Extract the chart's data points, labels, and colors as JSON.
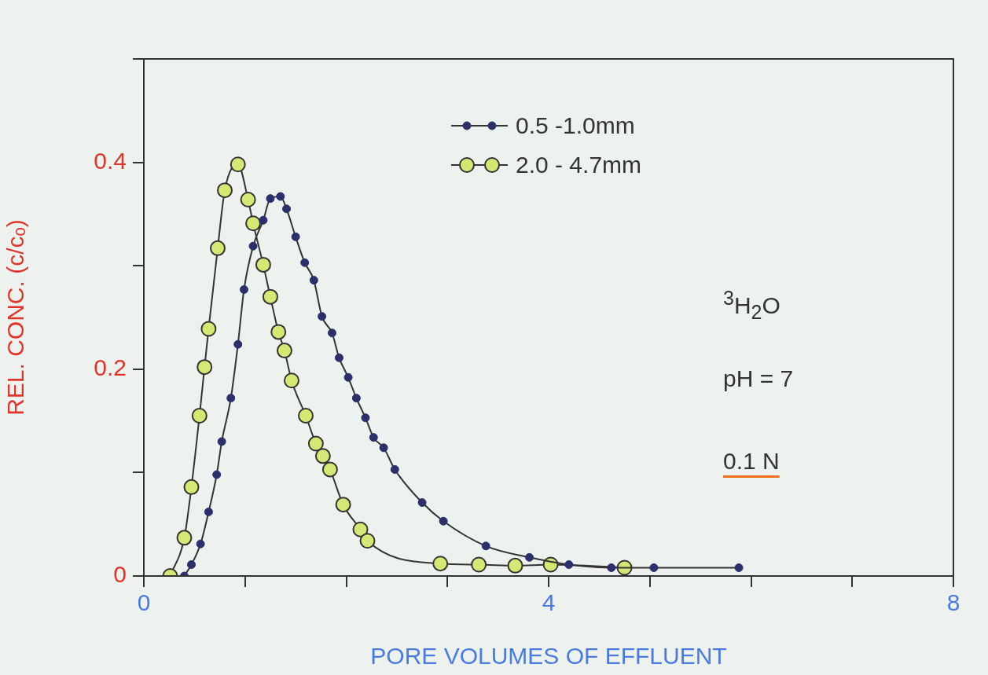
{
  "chart_data": {
    "type": "line",
    "xlabel": "PORE VOLUMES OF EFFLUENT",
    "ylabel": "REL. CONC. (c/cₒ)",
    "xlim": [
      0,
      8
    ],
    "ylim": [
      0,
      0.5
    ],
    "xticks": [
      0,
      {
        "value": 1,
        "label": null
      },
      {
        "value": 2,
        "label": null
      },
      {
        "value": 3,
        "label": null
      },
      4,
      {
        "value": 5,
        "label": null
      },
      {
        "value": 6,
        "label": null
      },
      {
        "value": 7,
        "label": null
      },
      8
    ],
    "yticks": [
      0,
      {
        "value": 0.1,
        "label": null
      },
      0.2,
      {
        "value": 0.3,
        "label": null
      },
      0.4,
      {
        "value": 0.5,
        "label": null
      }
    ],
    "grid": false,
    "legend": "top",
    "marker": "circle",
    "line_style": "solid",
    "annotations": [
      "$^{3}$H$_{2}$O",
      "pH = 7",
      "0.1 N"
    ],
    "series": [
      {
        "name": "0.5 -1.0mm",
        "color": "#2b2f6b",
        "x": [
          0.4,
          0.47,
          0.56,
          0.64,
          0.72,
          0.77,
          0.86,
          0.93,
          0.99,
          1.08,
          1.18,
          1.25,
          1.35,
          1.41,
          1.5,
          1.59,
          1.68,
          1.76,
          1.86,
          1.93,
          2.02,
          2.1,
          2.19,
          2.27,
          2.37,
          2.48,
          2.75,
          2.96,
          3.38,
          3.81,
          4.2,
          4.62,
          5.04,
          5.88
        ],
        "values": [
          0,
          0.011,
          0.031,
          0.062,
          0.098,
          0.13,
          0.172,
          0.224,
          0.277,
          0.319,
          0.344,
          0.365,
          0.367,
          0.355,
          0.328,
          0.303,
          0.286,
          0.251,
          0.235,
          0.211,
          0.192,
          0.172,
          0.153,
          0.134,
          0.124,
          0.103,
          0.071,
          0.053,
          0.029,
          0.018,
          0.011,
          0.008,
          0.008,
          0.008
        ]
      },
      {
        "name": "2.0 - 4.7mm",
        "color": "#d6e874",
        "x": [
          0.26,
          0.4,
          0.47,
          0.55,
          0.6,
          0.64,
          0.73,
          0.8,
          0.93,
          1.03,
          1.08,
          1.18,
          1.25,
          1.33,
          1.39,
          1.46,
          1.6,
          1.7,
          1.77,
          1.84,
          1.97,
          2.14,
          2.21,
          2.93,
          3.31,
          3.67,
          4.02,
          4.75
        ],
        "values": [
          0,
          0.037,
          0.086,
          0.155,
          0.202,
          0.239,
          0.317,
          0.373,
          0.398,
          0.364,
          0.341,
          0.301,
          0.27,
          0.236,
          0.218,
          0.189,
          0.155,
          0.128,
          0.116,
          0.103,
          0.069,
          0.045,
          0.034,
          0.012,
          0.011,
          0.01,
          0.011,
          0.008
        ]
      }
    ]
  }
}
